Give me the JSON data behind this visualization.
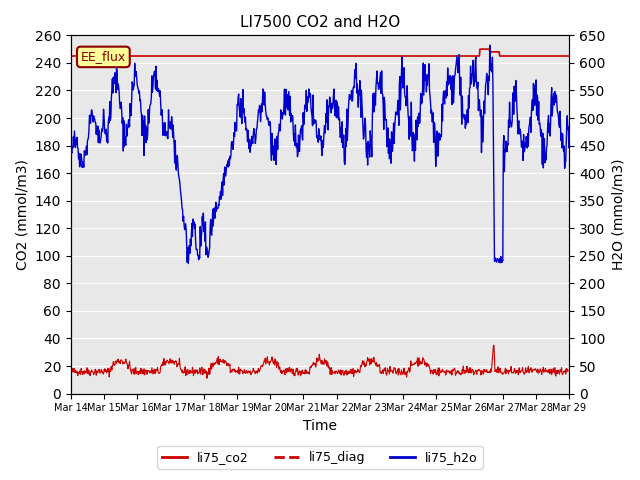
{
  "title": "LI7500 CO2 and H2O",
  "xlabel": "Time",
  "ylabel_left": "CO2 (mmol/m3)",
  "ylabel_right": "H2O (mmol/m3)",
  "ylim_left": [
    0,
    260
  ],
  "ylim_right": [
    0,
    650
  ],
  "yticks_left": [
    0,
    20,
    40,
    60,
    80,
    100,
    120,
    140,
    160,
    180,
    200,
    220,
    240,
    260
  ],
  "yticks_right": [
    0,
    50,
    100,
    150,
    200,
    250,
    300,
    350,
    400,
    450,
    500,
    550,
    600,
    650
  ],
  "xtick_labels": [
    "Mar 14",
    "Mar 15",
    "Mar 16",
    "Mar 17",
    "Mar 18",
    "Mar 19",
    "Mar 20",
    "Mar 21",
    "Mar 22",
    "Mar 23",
    "Mar 24",
    "Mar 25",
    "Mar 26",
    "Mar 27",
    "Mar 28",
    "Mar 29"
  ],
  "annotation_text": "EE_flux",
  "bg_color": "#e8e8e8",
  "line_co2_color": "#cc0000",
  "line_diag_color": "#cc0000",
  "line_h2o_color": "#0000cc",
  "legend_labels": [
    "li75_co2",
    "li75_diag",
    "li75_h2o"
  ],
  "n_points": 960
}
